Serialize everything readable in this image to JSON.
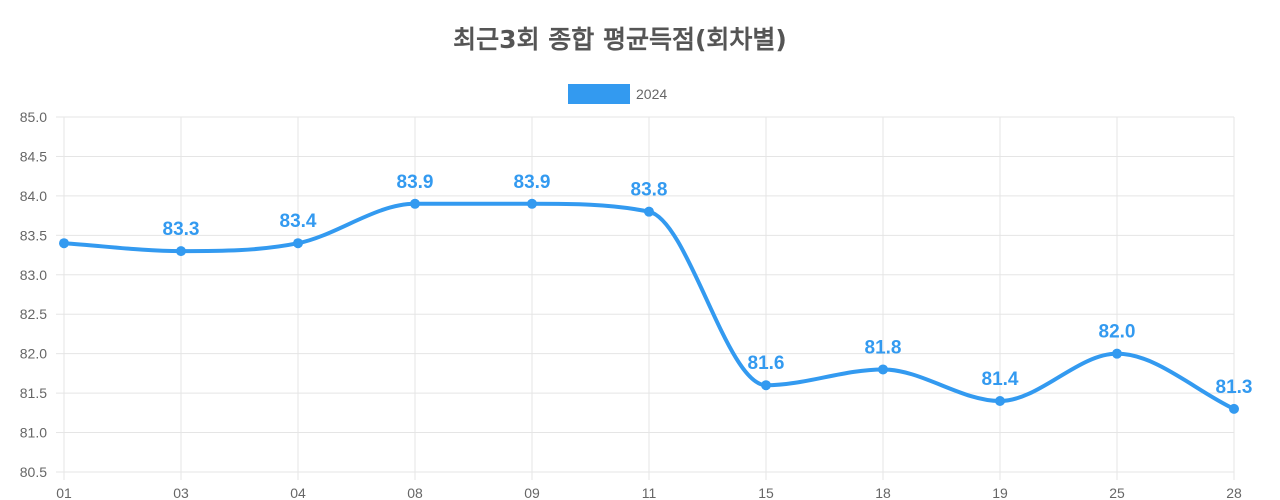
{
  "colors": {
    "series": "#339AF0",
    "grid": "#E5E5E5",
    "text": "#666666",
    "title": "#555555"
  },
  "chart_data": {
    "type": "line",
    "title": "최근3회 종합 평균득점(회차별)",
    "xlabel": "",
    "ylabel": "",
    "categories": [
      "01",
      "03",
      "04",
      "08",
      "09",
      "11",
      "15",
      "18",
      "19",
      "25",
      "28"
    ],
    "series": [
      {
        "name": "2024",
        "values": [
          83.4,
          83.3,
          83.4,
          83.9,
          83.9,
          83.8,
          81.6,
          81.8,
          81.4,
          82.0,
          81.3
        ]
      }
    ],
    "data_labels": [
      "",
      "83.3",
      "83.4",
      "83.9",
      "83.9",
      "83.8",
      "81.6",
      "81.8",
      "81.4",
      "82.0",
      "81.3"
    ],
    "ylim": [
      80.5,
      85.0
    ],
    "ytick_labels": [
      "85.0",
      "84.5",
      "84.0",
      "83.5",
      "83.0",
      "82.5",
      "82.0",
      "81.5",
      "81.0",
      "80.5"
    ],
    "grid": true,
    "smooth": true,
    "legend_position": "top-center"
  }
}
